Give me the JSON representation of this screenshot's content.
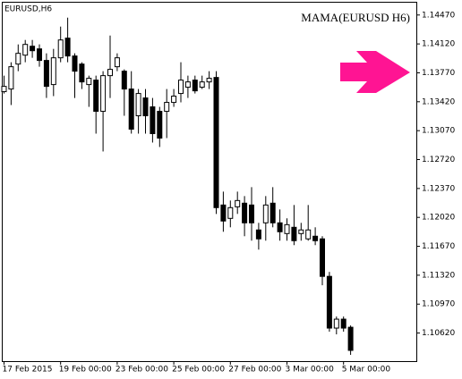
{
  "chart_data": {
    "type": "candlestick",
    "title": "EURUSD,H6",
    "annotation": "MAMA(EURUSD H6)",
    "annotation_color": "#9a4dc8",
    "up_color": "#ffffff",
    "down_color": "#000000",
    "categories": [
      "17 Feb 2015",
      null,
      null,
      null,
      null,
      null,
      null,
      null,
      "19 Feb 00:00",
      null,
      null,
      null,
      null,
      null,
      null,
      null,
      "23 Feb 00:00",
      null,
      null,
      null,
      null,
      null,
      null,
      null,
      "25 Feb 00:00",
      null,
      null,
      null,
      null,
      null,
      null,
      null,
      "27 Feb 00:00",
      null,
      null,
      null,
      null,
      null,
      null,
      null,
      "3 Mar 00:00",
      null,
      null,
      null,
      null,
      null,
      null,
      null,
      "5 Mar 00:00",
      null
    ],
    "open": [
      1.13542,
      1.13574,
      1.13876,
      1.13984,
      1.14092,
      1.1406,
      1.1392,
      1.13628,
      1.13952,
      1.1419,
      1.13974,
      1.13876,
      1.13628,
      1.13682,
      1.13304,
      1.13736,
      1.13844,
      1.1379,
      1.13574,
      1.1325,
      1.13466,
      1.13358,
      1.13304,
      1.13304,
      1.13412,
      1.1352,
      1.13596,
      1.13682,
      1.13596,
      1.1366,
      1.13714,
      1.1217,
      1.12008,
      1.12148,
      1.12192,
      1.1217,
      1.11868,
      1.11954,
      1.12192,
      1.11954,
      1.11824,
      1.119,
      1.11824,
      1.1176,
      1.11792,
      1.1176,
      1.11306,
      1.1068,
      1.10788,
      1.1069
    ],
    "high": [
      1.13736,
      1.13898,
      1.14114,
      1.14168,
      1.14168,
      1.14114,
      1.14006,
      1.1406,
      1.1433,
      1.14438,
      1.14006,
      1.13898,
      1.13736,
      1.13736,
      1.1379,
      1.14222,
      1.14006,
      1.13812,
      1.1379,
      1.13574,
      1.13574,
      1.13466,
      1.13358,
      1.13574,
      1.13574,
      1.13898,
      1.13736,
      1.13736,
      1.13736,
      1.1379,
      1.1379,
      1.12332,
      1.12224,
      1.12332,
      1.12278,
      1.12386,
      1.11954,
      1.12278,
      1.12386,
      1.12116,
      1.12008,
      1.1217,
      1.11954,
      1.1217,
      1.119,
      1.11792,
      1.1136,
      1.1082,
      1.1082,
      1.10712
    ],
    "low": [
      1.1352,
      1.1338,
      1.1379,
      1.13898,
      1.13952,
      1.13844,
      1.13466,
      1.13488,
      1.13898,
      1.13898,
      1.13466,
      1.13574,
      1.13358,
      1.13034,
      1.12818,
      1.13466,
      1.1379,
      1.1325,
      1.13034,
      1.13034,
      1.13034,
      1.12926,
      1.12872,
      1.1298,
      1.13358,
      1.13412,
      1.13466,
      1.1352,
      1.13574,
      1.13574,
      1.12062,
      1.11846,
      1.119,
      1.12062,
      1.11792,
      1.11738,
      1.1163,
      1.11738,
      1.119,
      1.11738,
      1.11738,
      1.11684,
      1.11738,
      1.11738,
      1.11684,
      1.11198,
      1.10636,
      1.10604,
      1.10636,
      1.10356
    ],
    "close": [
      1.13606,
      1.13844,
      1.14006,
      1.14114,
      1.14038,
      1.1392,
      1.13606,
      1.13952,
      1.14168,
      1.13974,
      1.1379,
      1.1366,
      1.13704,
      1.13304,
      1.13736,
      1.13812,
      1.13952,
      1.13574,
      1.13088,
      1.1352,
      1.1325,
      1.13034,
      1.1298,
      1.13412,
      1.13488,
      1.13682,
      1.1366,
      1.13552,
      1.1366,
      1.13704,
      1.12138,
      1.11976,
      1.12138,
      1.12224,
      1.11954,
      1.11954,
      1.1176,
      1.1217,
      1.11954,
      1.11846,
      1.11932,
      1.11738,
      1.11868,
      1.11868,
      1.11738,
      1.11306,
      1.1068,
      1.10788,
      1.1068,
      1.1041
    ],
    "ylim": [
      1.1028,
      1.1463
    ],
    "yticks": [
      {
        "value": 1.1447,
        "label": "1.14470"
      },
      {
        "value": 1.1412,
        "label": "1.14120"
      },
      {
        "value": 1.1377,
        "label": "1.13770"
      },
      {
        "value": 1.1342,
        "label": "1.13420"
      },
      {
        "value": 1.1307,
        "label": "1.13070"
      },
      {
        "value": 1.1272,
        "label": "1.12720"
      },
      {
        "value": 1.1237,
        "label": "1.12370"
      },
      {
        "value": 1.1202,
        "label": "1.12020"
      },
      {
        "value": 1.1167,
        "label": "1.11670"
      },
      {
        "value": 1.1132,
        "label": "1.11320"
      },
      {
        "value": 1.1097,
        "label": "1.10970"
      },
      {
        "value": 1.1062,
        "label": "1.10620"
      }
    ],
    "grid": false
  }
}
